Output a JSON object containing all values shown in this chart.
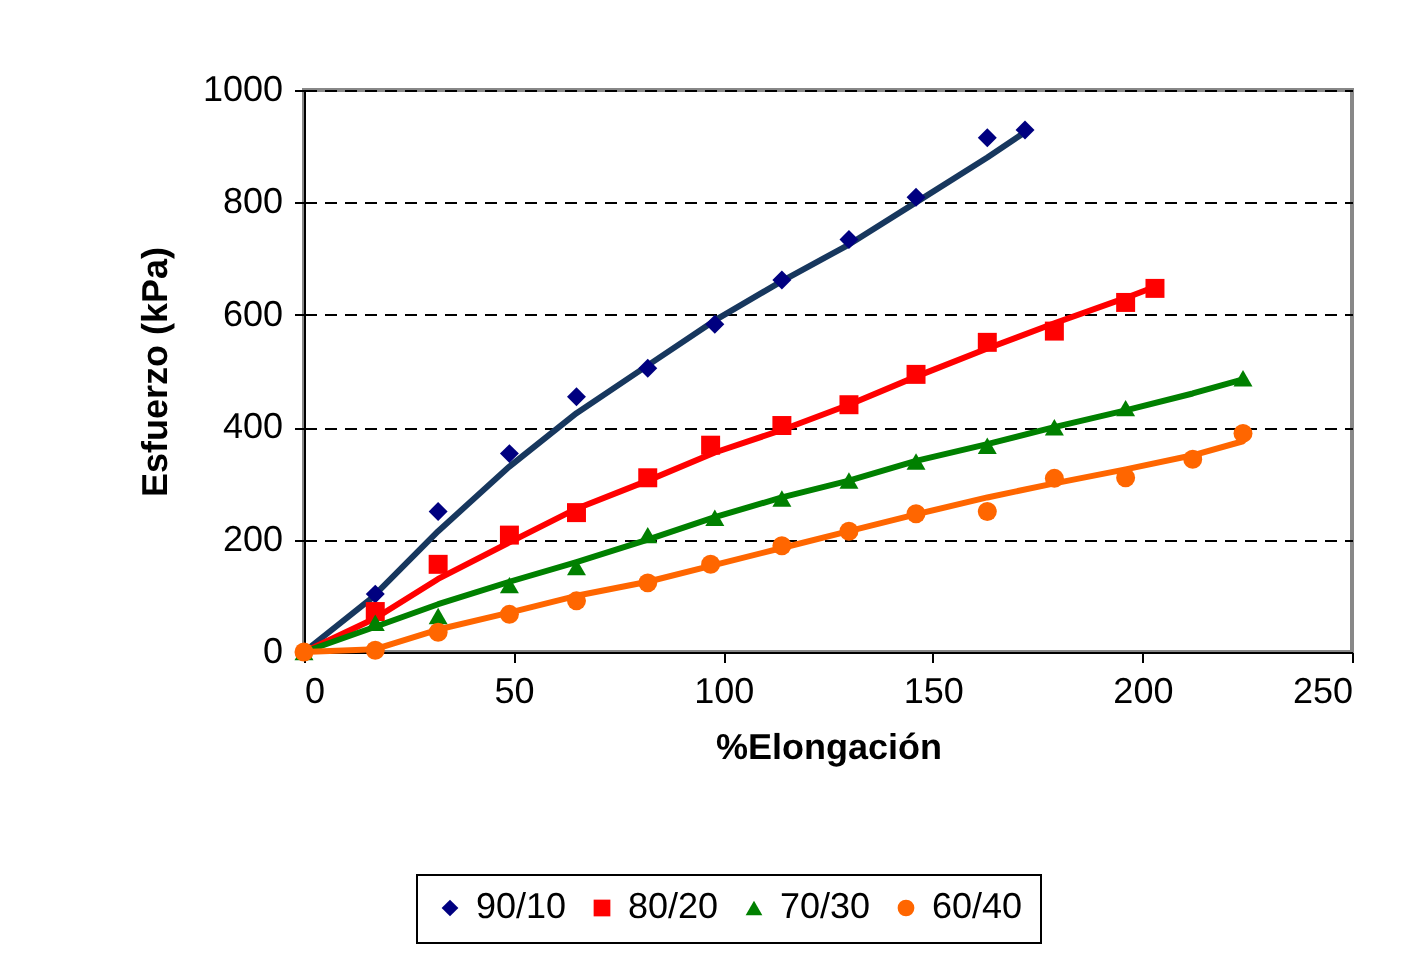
{
  "chart_data": {
    "type": "scatter",
    "xlabel": "%Elongación",
    "ylabel": "Esfuerzo  (kPa)",
    "xlim": [
      0,
      250
    ],
    "xticks": [
      0,
      50,
      100,
      150,
      200,
      250
    ],
    "ylim": [
      0,
      1000
    ],
    "yticks": [
      0,
      200,
      400,
      600,
      800,
      1000
    ],
    "grid": "y",
    "legend": "bottom",
    "series": [
      {
        "name": "90/10",
        "marker": "diamond",
        "color": "#000080",
        "x": [
          17,
          32,
          49,
          65,
          82,
          98,
          114,
          130,
          146,
          163,
          172
        ],
        "values": [
          103,
          250,
          353,
          454,
          505,
          583,
          662,
          734,
          809,
          915,
          929
        ]
      },
      {
        "name": "80/20",
        "marker": "square",
        "color": "#ff0000",
        "x": [
          17,
          32,
          49,
          65,
          82,
          97,
          114,
          130,
          146,
          163,
          179,
          196,
          203
        ],
        "values": [
          72,
          156,
          208,
          248,
          310,
          368,
          403,
          440,
          494,
          551,
          571,
          622,
          647
        ]
      },
      {
        "name": "70/30",
        "marker": "triangle",
        "color": "#008000",
        "x": [
          0,
          17,
          32,
          49,
          65,
          82,
          98,
          114,
          130,
          146,
          163,
          179,
          196,
          224
        ],
        "values": [
          0,
          52,
          64,
          119,
          151,
          208,
          239,
          273,
          305,
          339,
          367,
          400,
          434,
          487
        ]
      },
      {
        "name": "60/40",
        "marker": "circle",
        "color": "#ff6600",
        "x": [
          0,
          17,
          32,
          49,
          65,
          82,
          97,
          114,
          130,
          146,
          163,
          179,
          196,
          212,
          224
        ],
        "values": [
          0,
          3,
          35,
          67,
          91,
          123,
          156,
          189,
          215,
          246,
          250,
          309,
          310,
          343,
          389
        ]
      },
      {
        "type": "line",
        "color": "#17375e",
        "x": [
          0,
          16,
          32,
          49,
          65,
          82,
          98,
          114,
          130,
          146,
          163,
          172
        ],
        "values": [
          0,
          95,
          215,
          330,
          425,
          510,
          590,
          660,
          725,
          800,
          880,
          925
        ]
      },
      {
        "type": "line",
        "color": "#ff0000",
        "x": [
          0,
          17,
          32,
          49,
          65,
          82,
          98,
          114,
          130,
          146,
          163,
          179,
          196,
          203
        ],
        "values": [
          0,
          60,
          130,
          195,
          255,
          305,
          355,
          395,
          440,
          490,
          540,
          585,
          630,
          650
        ]
      },
      {
        "type": "line",
        "color": "#008000",
        "x": [
          0,
          17,
          32,
          49,
          65,
          82,
          98,
          114,
          130,
          146,
          163,
          179,
          196,
          212,
          224
        ],
        "values": [
          0,
          45,
          85,
          125,
          160,
          200,
          240,
          275,
          305,
          340,
          370,
          400,
          430,
          460,
          485
        ]
      },
      {
        "type": "line",
        "color": "#ff6600",
        "x": [
          0,
          17,
          32,
          49,
          65,
          82,
          98,
          114,
          130,
          146,
          163,
          179,
          196,
          212,
          224
        ],
        "values": [
          0,
          5,
          40,
          70,
          100,
          125,
          155,
          185,
          215,
          245,
          275,
          300,
          325,
          350,
          375
        ]
      }
    ]
  }
}
